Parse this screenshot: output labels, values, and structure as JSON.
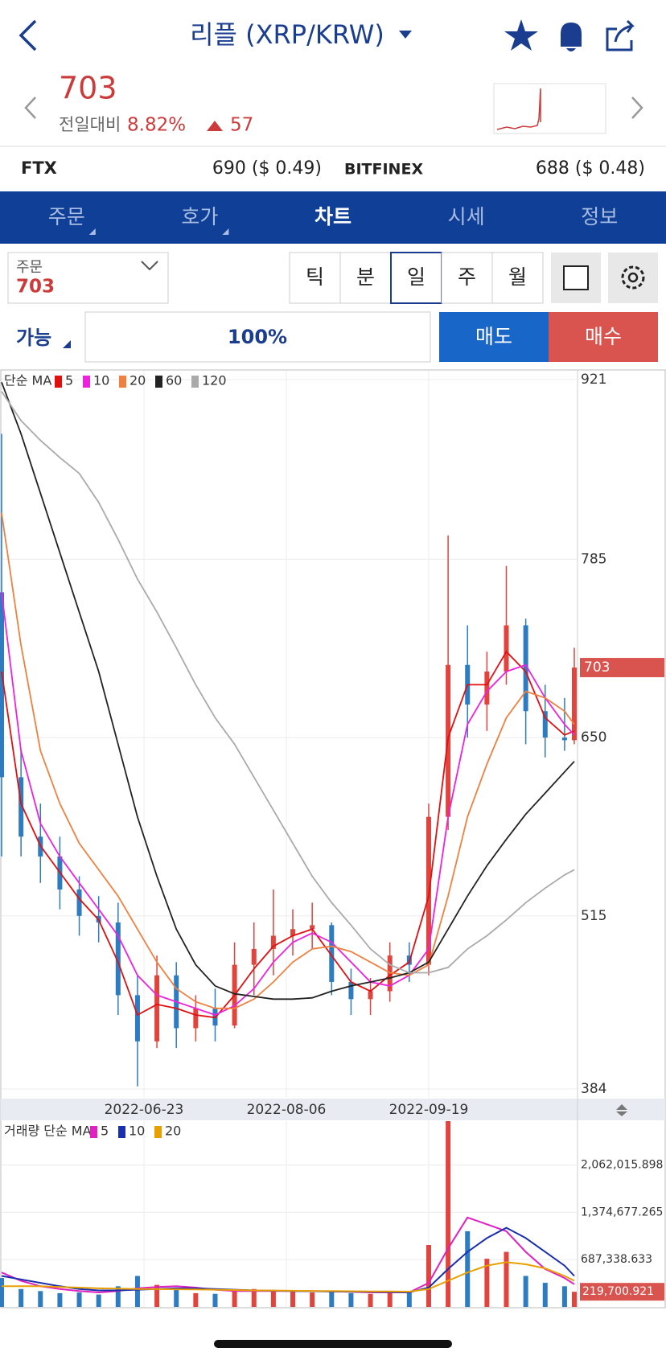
{
  "header": {
    "title": "리플 (XRP/KRW)"
  },
  "quote": {
    "price": 703,
    "change_label": "전일대비",
    "change_pct": "8.82%",
    "change": 57
  },
  "exchanges": [
    {
      "name": "FTX",
      "price": "690 ($ 0.49)"
    },
    {
      "name": "BITFINEX",
      "price": "688 ($ 0.48)"
    }
  ],
  "tabs": {
    "items": [
      "주문",
      "호가",
      "차트",
      "시세",
      "정보"
    ],
    "selected": 2
  },
  "order": {
    "label": "주문",
    "price": 703,
    "periods": [
      "틱",
      "분",
      "일",
      "주",
      "월"
    ],
    "selected_period": 2,
    "available": "가능",
    "ratio": "100%",
    "sell": "매도",
    "buy": "매수"
  },
  "chart_data": [
    {
      "type": "candlestick",
      "legend_title": "단순 MA",
      "x": [
        "2022-05-10",
        "2022-05-16",
        "2022-05-22",
        "2022-05-28",
        "2022-06-03",
        "2022-06-09",
        "2022-06-15",
        "2022-06-21",
        "2022-06-27",
        "2022-07-03",
        "2022-07-09",
        "2022-07-15",
        "2022-07-21",
        "2022-07-27",
        "2022-08-02",
        "2022-08-08",
        "2022-08-14",
        "2022-08-20",
        "2022-08-26",
        "2022-09-01",
        "2022-09-07",
        "2022-09-13",
        "2022-09-19",
        "2022-09-25",
        "2022-10-01",
        "2022-10-07",
        "2022-10-13",
        "2022-10-19",
        "2022-10-25",
        "2022-10-31",
        "2022-11-03"
      ],
      "open": [
        760,
        620,
        575,
        560,
        535,
        515,
        510,
        455,
        420,
        470,
        430,
        445,
        432,
        478,
        490,
        500,
        505,
        508,
        465,
        452,
        458,
        485,
        478,
        590,
        705,
        675,
        700,
        735,
        670,
        650,
        648
      ],
      "high": [
        880,
        640,
        600,
        575,
        545,
        530,
        525,
        470,
        485,
        480,
        455,
        460,
        495,
        510,
        535,
        520,
        525,
        510,
        475,
        468,
        495,
        495,
        600,
        803,
        735,
        715,
        780,
        740,
        690,
        680,
        718
      ],
      "low": [
        560,
        560,
        540,
        520,
        500,
        495,
        440,
        386,
        415,
        415,
        420,
        420,
        430,
        455,
        470,
        485,
        490,
        455,
        440,
        440,
        450,
        465,
        470,
        580,
        650,
        655,
        690,
        645,
        635,
        640,
        645
      ],
      "close": [
        620,
        575,
        560,
        535,
        515,
        510,
        455,
        420,
        470,
        430,
        445,
        432,
        478,
        490,
        500,
        505,
        508,
        465,
        452,
        458,
        485,
        478,
        590,
        705,
        675,
        700,
        735,
        670,
        650,
        648,
        703
      ],
      "up_color": "#e0443c",
      "down_color": "#2d7cc1",
      "xlim": [
        "2022-05-10",
        "2022-11-04"
      ],
      "xticks": [
        "2022-06-23",
        "2022-08-06",
        "2022-09-19"
      ],
      "ylim": [
        384,
        921
      ],
      "yticks": [
        921,
        785,
        650,
        515,
        384
      ],
      "grid": true,
      "current": 703,
      "series": [
        {
          "name": "5",
          "color": "#e01010",
          "values": [
            700,
            600,
            568,
            548,
            528,
            512,
            480,
            440,
            448,
            445,
            440,
            438,
            455,
            475,
            492,
            500,
            505,
            485,
            465,
            458,
            470,
            480,
            530,
            650,
            690,
            690,
            715,
            700,
            665,
            652,
            655
          ]
        },
        {
          "name": "10",
          "color": "#f020e0",
          "values": [
            760,
            640,
            585,
            560,
            540,
            520,
            500,
            470,
            455,
            450,
            445,
            440,
            447,
            460,
            480,
            495,
            502,
            495,
            480,
            465,
            462,
            470,
            490,
            590,
            660,
            685,
            700,
            705,
            680,
            660,
            652
          ]
        },
        {
          "name": "20",
          "color": "#f08040",
          "values": [
            820,
            720,
            640,
            600,
            570,
            550,
            530,
            505,
            480,
            460,
            450,
            445,
            445,
            452,
            465,
            480,
            490,
            492,
            488,
            480,
            472,
            470,
            478,
            530,
            590,
            630,
            665,
            685,
            680,
            670,
            660
          ]
        },
        {
          "name": "60",
          "color": "#222222",
          "values": [
            919,
            880,
            835,
            790,
            745,
            700,
            645,
            590,
            545,
            505,
            478,
            462,
            456,
            454,
            452,
            452,
            453,
            458,
            462,
            465,
            468,
            472,
            480,
            505,
            530,
            553,
            573,
            592,
            608,
            624,
            632
          ]
        },
        {
          "name": "120",
          "color": "#aaaaaa",
          "values": [
            912,
            890,
            875,
            862,
            850,
            828,
            800,
            770,
            745,
            718,
            690,
            665,
            645,
            620,
            595,
            570,
            545,
            525,
            508,
            490,
            478,
            472,
            472,
            476,
            490,
            500,
            512,
            525,
            536,
            546,
            550
          ]
        }
      ]
    },
    {
      "type": "bar",
      "legend_title": "거래량 단순 MA",
      "x": [
        "2022-05-10",
        "2022-05-16",
        "2022-05-22",
        "2022-05-28",
        "2022-06-03",
        "2022-06-09",
        "2022-06-15",
        "2022-06-21",
        "2022-06-27",
        "2022-07-03",
        "2022-07-09",
        "2022-07-15",
        "2022-07-21",
        "2022-07-27",
        "2022-08-02",
        "2022-08-08",
        "2022-08-14",
        "2022-08-20",
        "2022-08-26",
        "2022-09-01",
        "2022-09-07",
        "2022-09-13",
        "2022-09-19",
        "2022-09-25",
        "2022-10-01",
        "2022-10-07",
        "2022-10-13",
        "2022-10-19",
        "2022-10-25",
        "2022-10-31",
        "2022-11-03"
      ],
      "values": [
        420000,
        260000,
        230000,
        200000,
        210000,
        180000,
        300000,
        450000,
        320000,
        250000,
        200000,
        190000,
        230000,
        260000,
        240000,
        220000,
        210000,
        230000,
        200000,
        190000,
        210000,
        230000,
        900000,
        2700000,
        1100000,
        700000,
        800000,
        450000,
        350000,
        300000,
        219700.921
      ],
      "xlim": [
        "2022-05-10",
        "2022-11-04"
      ],
      "ylim": [
        0,
        2700000
      ],
      "yticks": [
        {
          "value": 2062015.898,
          "label": "2,062,015.898"
        },
        {
          "value": 1374677.265,
          "label": "1,374,677.265"
        },
        {
          "value": 687338.633,
          "label": "687,338.633"
        }
      ],
      "grid": true,
      "current": {
        "value": 219700.921,
        "label": "219,700.921"
      },
      "series": [
        {
          "name": "5",
          "color": "#e020c0",
          "values": [
            500000,
            380000,
            300000,
            260000,
            230000,
            210000,
            230000,
            270000,
            290000,
            300000,
            280000,
            250000,
            230000,
            230000,
            230000,
            230000,
            230000,
            225000,
            220000,
            210000,
            210000,
            210000,
            350000,
            850000,
            1300000,
            1200000,
            1100000,
            800000,
            550000,
            420000,
            330000
          ]
        },
        {
          "name": "10",
          "color": "#1a2fb0",
          "values": [
            450000,
            400000,
            350000,
            300000,
            260000,
            240000,
            240000,
            250000,
            260000,
            270000,
            270000,
            260000,
            250000,
            240000,
            235000,
            230000,
            228000,
            226000,
            222000,
            218000,
            215000,
            212000,
            280000,
            550000,
            800000,
            1000000,
            1150000,
            1000000,
            800000,
            600000,
            450000
          ]
        },
        {
          "name": "20",
          "color": "#e8a000",
          "values": [
            300000,
            300000,
            300000,
            290000,
            280000,
            270000,
            265000,
            260000,
            258000,
            256000,
            254000,
            250000,
            245000,
            240000,
            238000,
            235000,
            232000,
            230000,
            228000,
            226000,
            224000,
            222000,
            260000,
            380000,
            500000,
            600000,
            650000,
            620000,
            560000,
            450000,
            380000
          ]
        }
      ]
    }
  ]
}
